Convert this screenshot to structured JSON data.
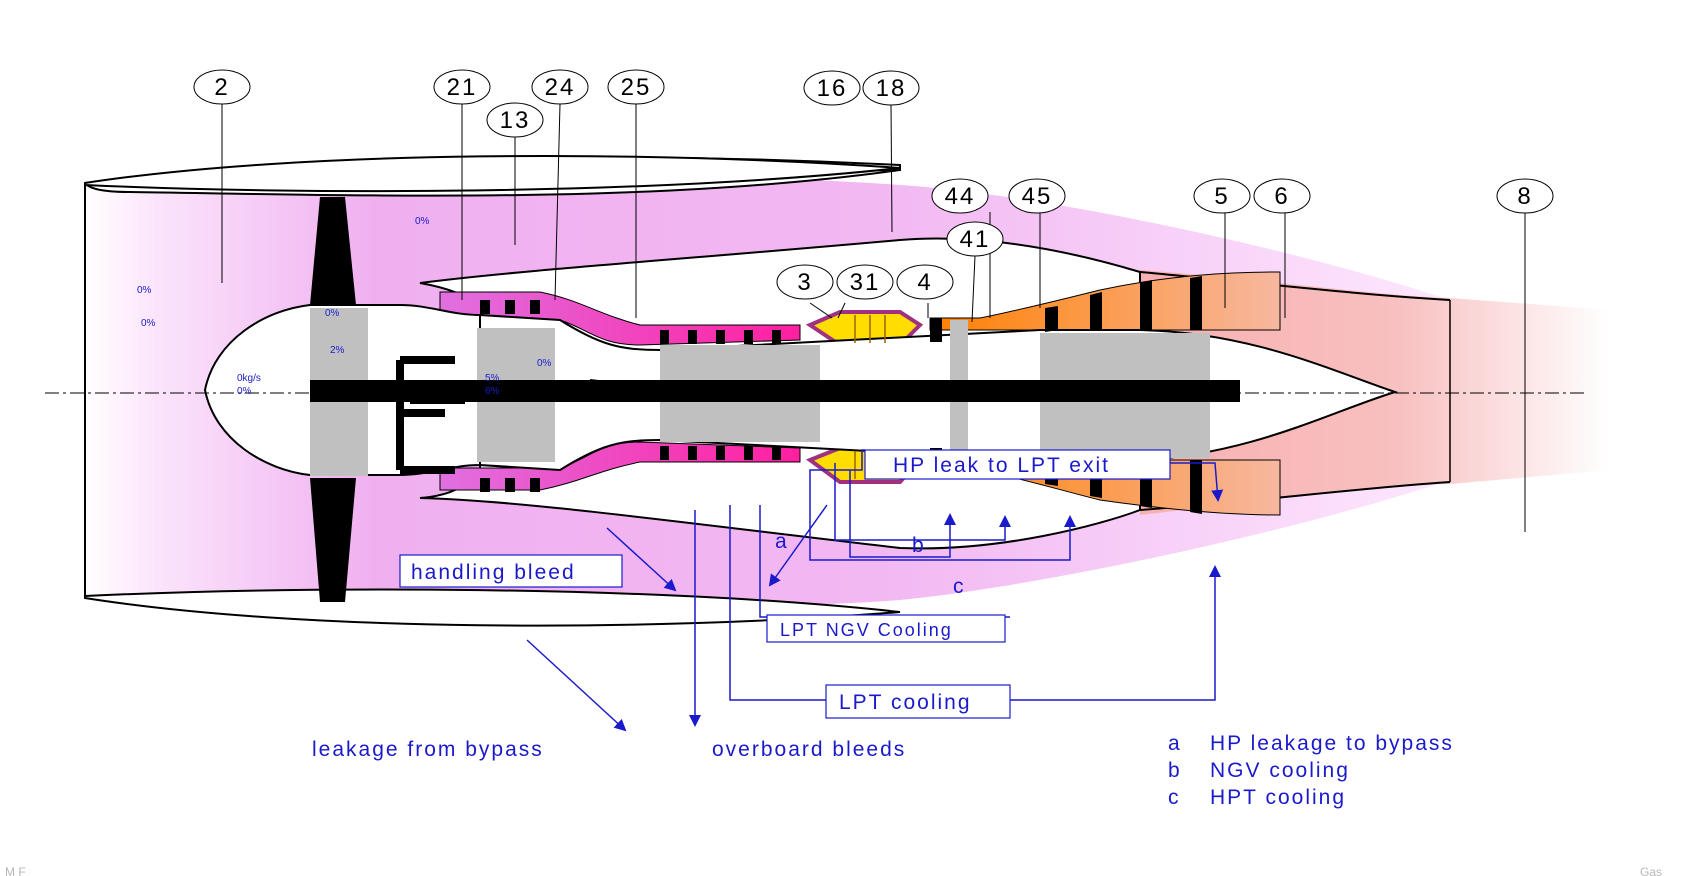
{
  "stations": [
    "2",
    "21",
    "13",
    "24",
    "25",
    "16",
    "18",
    "3",
    "31",
    "4",
    "41",
    "44",
    "45",
    "5",
    "6",
    "8"
  ],
  "flow_values": {
    "inlet_top": "0%",
    "inlet_mid": "0%",
    "bypass_top": "0%",
    "fan_hub": "0%",
    "fan_hub_lower": "2%",
    "spinner_flow": "0kg/s",
    "spinner_pct": "0%",
    "core_bleed_1": "5%",
    "core_bleed_2": "6%",
    "duct_25": "0%"
  },
  "boxed_labels": {
    "handling_bleed": "handling bleed",
    "hp_leak_to_lpt_exit": "HP leak to LPT exit",
    "lpt_ngv_cooling": "LPT NGV Cooling",
    "lpt_cooling": "LPT cooling"
  },
  "letters": {
    "a": "a",
    "b": "b",
    "c": "c"
  },
  "bottom_labels": {
    "leakage_from_bypass": "leakage from bypass",
    "overboard_bleeds": "overboard bleeds"
  },
  "legend": [
    {
      "key": "a",
      "text": "HP leakage to bypass"
    },
    {
      "key": "b",
      "text": "NGV cooling"
    },
    {
      "key": "c",
      "text": "HPT cooling"
    }
  ],
  "corner": {
    "left": "M F",
    "right": "Gas"
  },
  "colors": {
    "bypass_pink": "#f2b3f2",
    "core_magenta": "#dd22dd",
    "combustor_yellow": "#ffdd00",
    "turbine_orange": "#f5a050",
    "exhaust_pink": "#f7b8b8",
    "annotation_blue": "#1a1acc",
    "shaft_grey": "#c0c0c0"
  }
}
